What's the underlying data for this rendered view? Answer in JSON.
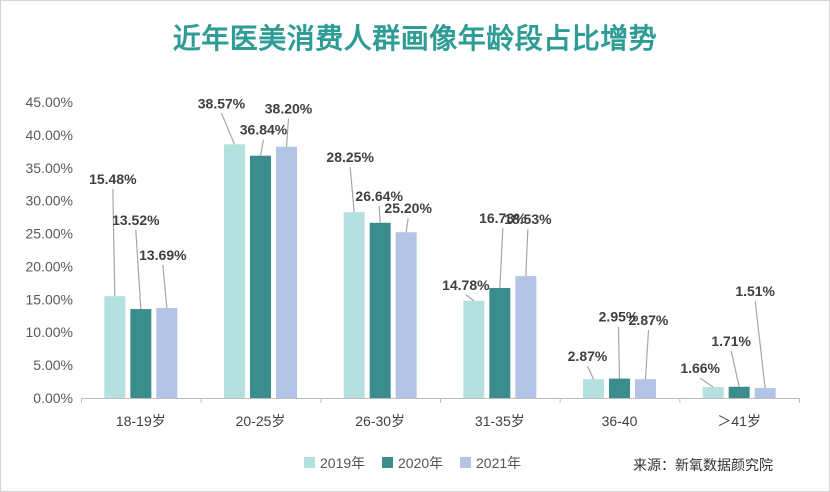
{
  "chart_data": {
    "type": "bar",
    "title": "近年医美消费人群画像年龄段占比增势",
    "categories": [
      "18-19岁",
      "20-25岁",
      "26-30岁",
      "31-35岁",
      "36-40",
      "＞41岁"
    ],
    "series": [
      {
        "name": "2019年",
        "color": "#b4e0e0",
        "values": [
          15.48,
          38.57,
          28.25,
          14.78,
          2.87,
          1.66
        ],
        "labels": [
          "15.48%",
          "38.57%",
          "28.25%",
          "14.78%",
          "2.87%",
          "1.66%"
        ]
      },
      {
        "name": "2020年",
        "color": "#3b8d8d",
        "values": [
          13.52,
          36.84,
          26.64,
          16.73,
          2.95,
          1.71
        ],
        "labels": [
          "13.52%",
          "36.84%",
          "26.64%",
          "16.73%",
          "2.95%",
          "1.71%"
        ]
      },
      {
        "name": "2021年",
        "color": "#b3c4e6",
        "values": [
          13.69,
          38.2,
          25.2,
          18.53,
          2.87,
          1.51
        ],
        "labels": [
          "13.69%",
          "38.20%",
          "25.20%",
          "18.53%",
          "2.87%",
          "1.51%"
        ]
      }
    ],
    "ylim": [
      0,
      45
    ],
    "yticks": [
      "0.00%",
      "5.00%",
      "10.00%",
      "15.00%",
      "20.00%",
      "25.00%",
      "30.00%",
      "35.00%",
      "40.00%",
      "45.00%"
    ],
    "grid": false,
    "legend": "bottom"
  },
  "source": "来源：新氧数据颜究院"
}
